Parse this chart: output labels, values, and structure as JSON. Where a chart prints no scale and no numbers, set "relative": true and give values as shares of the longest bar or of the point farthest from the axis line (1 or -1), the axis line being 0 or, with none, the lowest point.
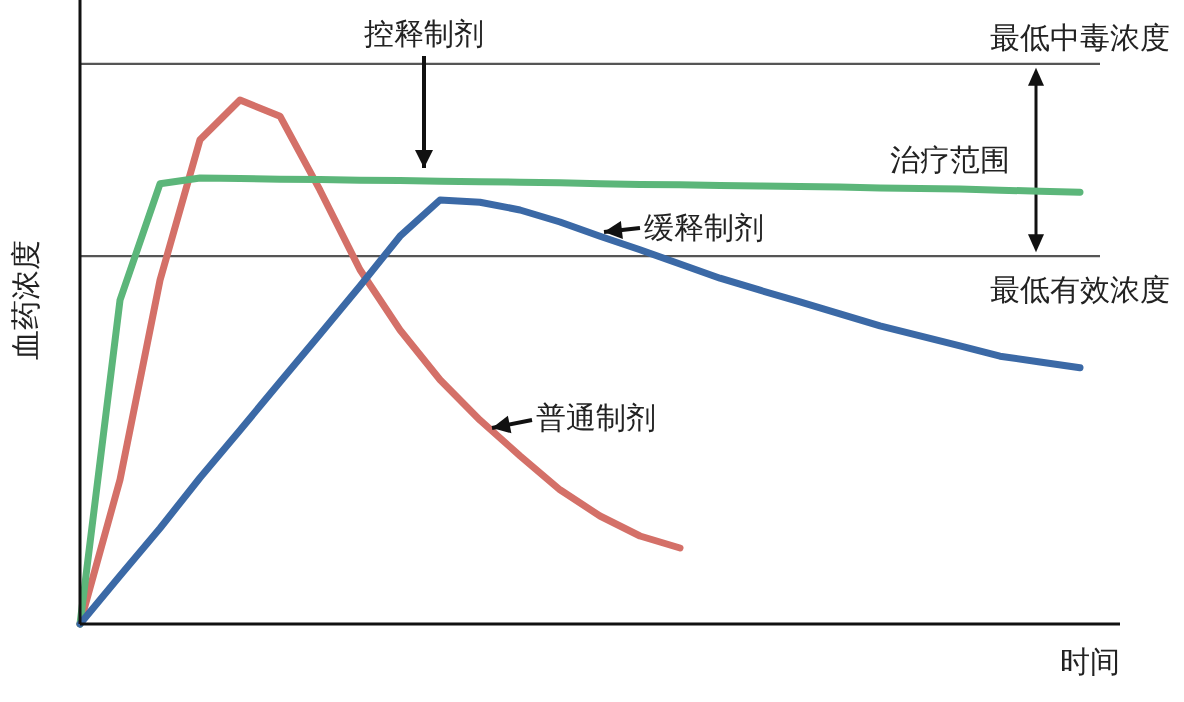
{
  "chart_data": {
    "type": "line",
    "relative": true,
    "xlabel": "时间",
    "ylabel": "血药浓度",
    "line_style": "solid",
    "categories": [
      null,
      null,
      null,
      null,
      null,
      null,
      null,
      null,
      null,
      null,
      null,
      null,
      null,
      null,
      null,
      null,
      null,
      null,
      null,
      null,
      null,
      null,
      null,
      null,
      null,
      null
    ],
    "series": [
      {
        "name": "普通制剂",
        "color": "#d47068",
        "values": [
          0,
          0.275,
          0.656,
          0.924,
          1,
          0.969,
          0.828,
          0.676,
          0.561,
          0.466,
          0.389,
          0.321,
          0.256,
          0.206,
          0.168,
          0.145,
          null,
          null,
          null,
          null,
          null,
          null,
          null,
          null,
          null,
          null
        ]
      },
      {
        "name": "控释制剂",
        "color": "#5cb67a",
        "values": [
          0,
          0.618,
          0.84,
          0.851,
          0.85,
          0.849,
          0.848,
          0.847,
          0.846,
          0.845,
          0.844,
          0.843,
          0.842,
          0.84,
          0.839,
          0.838,
          0.837,
          0.836,
          0.835,
          0.834,
          0.832,
          0.831,
          0.83,
          0.828,
          0.826,
          0.824
        ]
      },
      {
        "name": "缓释制剂",
        "color": "#3b69a6",
        "values": [
          0,
          0.092,
          0.183,
          0.279,
          0.37,
          0.462,
          0.553,
          0.645,
          0.74,
          0.809,
          0.805,
          0.79,
          0.767,
          0.74,
          0.714,
          0.687,
          0.66,
          0.637,
          0.615,
          0.592,
          0.569,
          0.55,
          0.531,
          0.511,
          0.5,
          0.489
        ]
      }
    ],
    "ref_lines": [
      {
        "axis": "y",
        "value": 1.069,
        "label": "最低中毒浓度",
        "color": "#555555"
      },
      {
        "axis": "y",
        "value": 0.702,
        "label": "最低有效浓度",
        "color": "#555555"
      }
    ],
    "annotations": [
      "治疗范围"
    ]
  }
}
